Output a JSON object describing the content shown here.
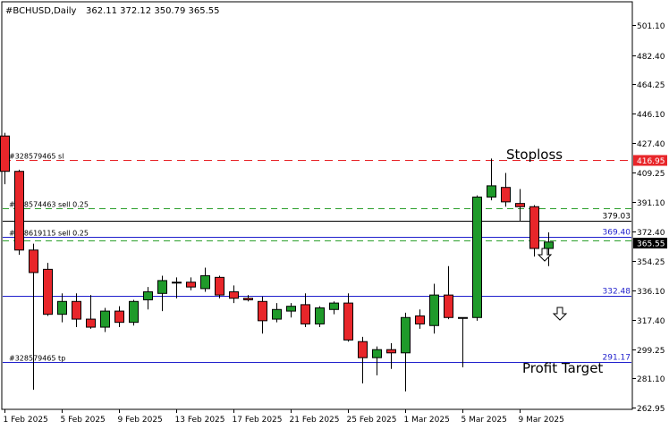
{
  "window": {
    "symbol_label": "#BCHUSD,Daily",
    "ohlc_label": "362.11 372.12 350.79 365.55"
  },
  "chart_data": {
    "type": "candlestick",
    "symbol": "#BCHUSD",
    "timeframe": "Daily",
    "ylim": [
      262.95,
      519.5
    ],
    "price_ticks": [
      "501.10",
      "482.40",
      "464.25",
      "446.10",
      "427.40",
      "409.25",
      "391.10",
      "372.40",
      "354.25",
      "336.10",
      "317.40",
      "299.25",
      "281.10",
      "262.95"
    ],
    "date_ticks": [
      "1 Feb 2025",
      "5 Feb 2025",
      "9 Feb 2025",
      "13 Feb 2025",
      "17 Feb 2025",
      "21 Feb 2025",
      "25 Feb 2025",
      "1 Mar 2025",
      "5 Mar 2025",
      "9 Mar 2025"
    ],
    "candles": [
      {
        "o": 432,
        "h": 434,
        "l": 402,
        "c": 410
      },
      {
        "o": 410,
        "h": 411,
        "l": 358,
        "c": 361
      },
      {
        "o": 361,
        "h": 365,
        "l": 274,
        "c": 347
      },
      {
        "o": 349,
        "h": 353,
        "l": 320,
        "c": 321
      },
      {
        "o": 321,
        "h": 334,
        "l": 316,
        "c": 329
      },
      {
        "o": 329,
        "h": 334,
        "l": 313,
        "c": 318
      },
      {
        "o": 318,
        "h": 333,
        "l": 312,
        "c": 313
      },
      {
        "o": 313,
        "h": 325,
        "l": 310,
        "c": 323
      },
      {
        "o": 323,
        "h": 326,
        "l": 313,
        "c": 316
      },
      {
        "o": 316,
        "h": 330,
        "l": 314,
        "c": 329
      },
      {
        "o": 330,
        "h": 338,
        "l": 324,
        "c": 335
      },
      {
        "o": 334,
        "h": 345,
        "l": 323,
        "c": 342
      },
      {
        "o": 341,
        "h": 344,
        "l": 331,
        "c": 341
      },
      {
        "o": 341,
        "h": 344,
        "l": 336,
        "c": 338
      },
      {
        "o": 337,
        "h": 350,
        "l": 335,
        "c": 345
      },
      {
        "o": 344,
        "h": 345,
        "l": 331,
        "c": 333
      },
      {
        "o": 335,
        "h": 339,
        "l": 328,
        "c": 331
      },
      {
        "o": 331,
        "h": 333,
        "l": 329,
        "c": 330
      },
      {
        "o": 329,
        "h": 332,
        "l": 309,
        "c": 317
      },
      {
        "o": 318,
        "h": 328,
        "l": 316,
        "c": 324
      },
      {
        "o": 323,
        "h": 328,
        "l": 319,
        "c": 326
      },
      {
        "o": 327,
        "h": 334,
        "l": 313,
        "c": 315
      },
      {
        "o": 315,
        "h": 326,
        "l": 313,
        "c": 325
      },
      {
        "o": 324,
        "h": 329,
        "l": 321,
        "c": 328
      },
      {
        "o": 328,
        "h": 334,
        "l": 304,
        "c": 305
      },
      {
        "o": 304,
        "h": 307,
        "l": 278,
        "c": 294
      },
      {
        "o": 294,
        "h": 301,
        "l": 283,
        "c": 299
      },
      {
        "o": 299,
        "h": 303,
        "l": 287,
        "c": 297
      },
      {
        "o": 297,
        "h": 322,
        "l": 273,
        "c": 319
      },
      {
        "o": 320,
        "h": 324,
        "l": 312,
        "c": 315
      },
      {
        "o": 314,
        "h": 340,
        "l": 309,
        "c": 333
      },
      {
        "o": 333,
        "h": 351,
        "l": 318,
        "c": 319
      },
      {
        "o": 319,
        "h": 319,
        "l": 288,
        "c": 319
      },
      {
        "o": 319,
        "h": 395,
        "l": 317,
        "c": 394
      },
      {
        "o": 394,
        "h": 418,
        "l": 392,
        "c": 401
      },
      {
        "o": 400,
        "h": 409,
        "l": 388,
        "c": 391
      },
      {
        "o": 390,
        "h": 399,
        "l": 379,
        "c": 388
      },
      {
        "o": 388,
        "h": 389,
        "l": 357,
        "c": 362
      },
      {
        "o": 362,
        "h": 372,
        "l": 351,
        "c": 366
      }
    ],
    "levels": [
      {
        "price": 416.95,
        "label": "416.95",
        "left_label": "#328579465 sl",
        "style": "dashed",
        "color": "#e8262a",
        "badge": true
      },
      {
        "price": 386.8,
        "label": "",
        "left_label": "#328574463 sell 0.25",
        "style": "dashed",
        "color": "#2ca02c",
        "badge": false
      },
      {
        "price": 379.03,
        "label": "379.03",
        "left_label": "",
        "style": "solid",
        "color": "#000000",
        "badge": false
      },
      {
        "price": 369.4,
        "label": "369.40",
        "left_label": "#328619115 sell 0.25",
        "style": "solid",
        "color": "#1f1fcc",
        "badge": false
      },
      {
        "price": 367.0,
        "label": "",
        "left_label": "",
        "style": "dashed",
        "color": "#2ca02c",
        "badge": false
      },
      {
        "price": 332.48,
        "label": "332.48",
        "left_label": "",
        "style": "solid",
        "color": "#1f1fcc",
        "badge": false
      },
      {
        "price": 291.17,
        "label": "291.17",
        "left_label": "#328579465 tp",
        "style": "solid",
        "color": "#1f1fcc",
        "badge": false
      }
    ],
    "current_price": "365.55",
    "annotations": [
      "Stoploss",
      "Profit Target"
    ],
    "grid": false
  }
}
